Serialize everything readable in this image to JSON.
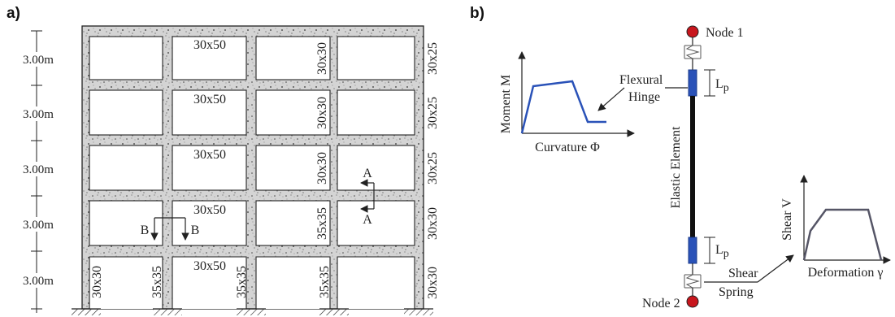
{
  "panel_a": {
    "label": "a)",
    "story_heights": [
      "3.00m",
      "3.00m",
      "3.00m",
      "3.00m",
      "3.00m"
    ],
    "beam_sizes": [
      "30x50",
      "30x50",
      "30x50",
      "30x50",
      "30x50"
    ],
    "left_col_sizes": [
      "30x30",
      "30x30",
      "30x30",
      "35x35",
      "35x35"
    ],
    "ext_col_sizes": [
      "30x25",
      "30x25",
      "30x25",
      "30x30",
      "30x30"
    ],
    "bottom_col_sizes": [
      "30x30",
      "35x35",
      "35x35",
      "35x35",
      "30x30"
    ],
    "section_a": "A",
    "section_b": "B"
  },
  "panel_b": {
    "label": "b)",
    "node1": "Node 1",
    "node2": "Node 2",
    "flexural_hinge": [
      "Flexural",
      "Hinge"
    ],
    "lp": "L",
    "lp_sub": "p",
    "elastic_element": "Elastic Element",
    "shear_spring": [
      "Shear",
      "Spring"
    ],
    "moment_axis": "Moment M",
    "curvature_axis": "Curvature Φ",
    "shear_axis": "Shear V",
    "deformation_axis": "Deformation γ"
  },
  "colors": {
    "node": "#c8161d",
    "hinge": "#2a52b8",
    "curve": "#2a52b8",
    "shear_curve": "#555566",
    "concrete": "#d2d2d2"
  }
}
